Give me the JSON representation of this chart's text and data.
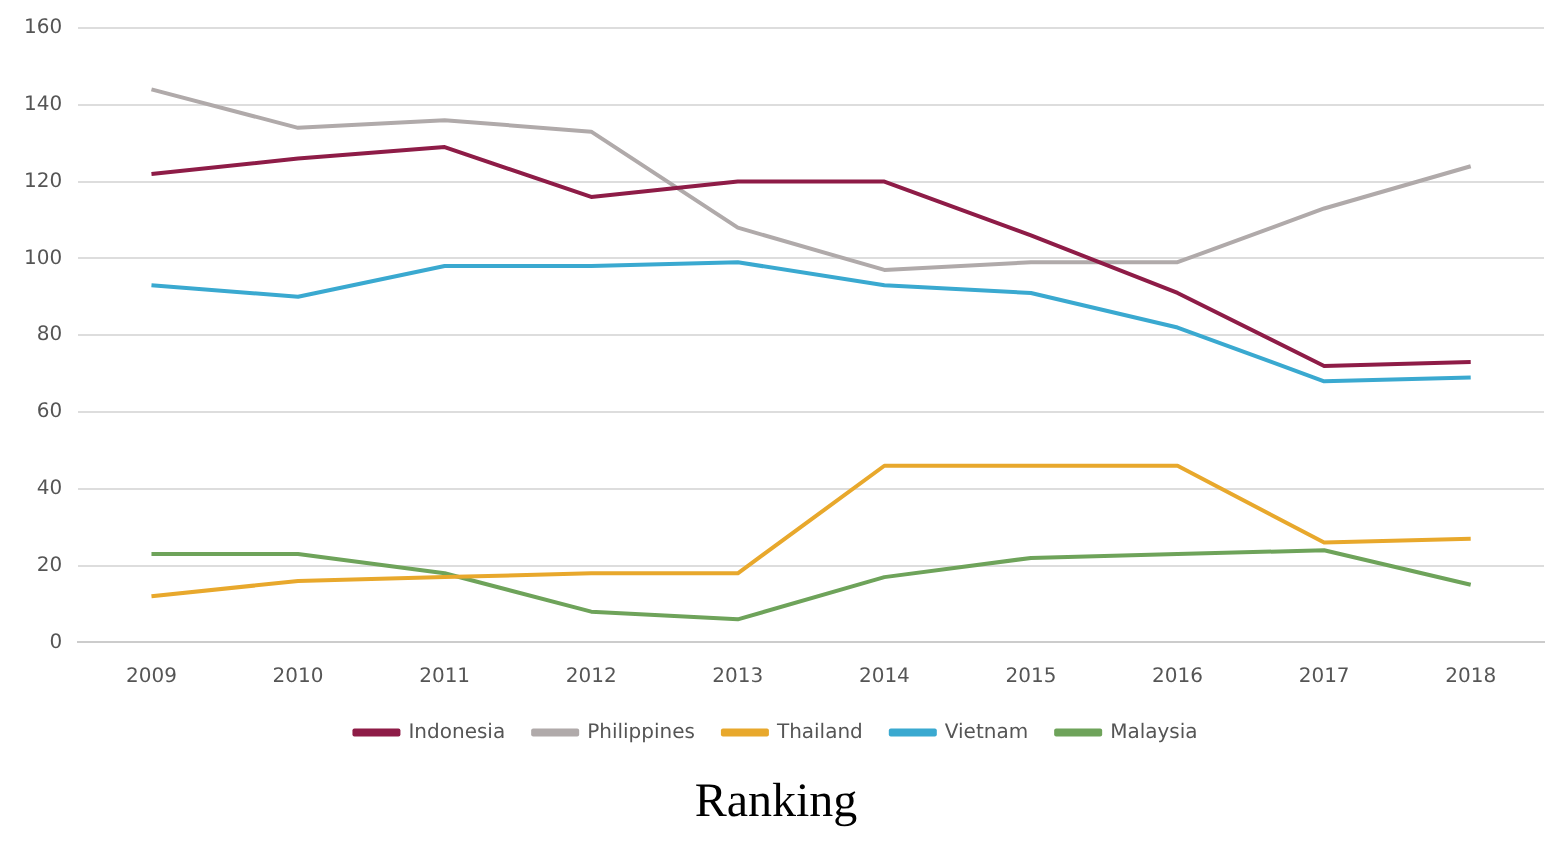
{
  "chart_data": {
    "type": "line",
    "title": "Ranking",
    "categories": [
      "2009",
      "2010",
      "2011",
      "2012",
      "2013",
      "2014",
      "2015",
      "2016",
      "2017",
      "2018"
    ],
    "series": [
      {
        "name": "Indonesia",
        "color": "#8e1c47",
        "values": [
          122,
          126,
          129,
          116,
          120,
          120,
          106,
          91,
          72,
          73
        ]
      },
      {
        "name": "Philippines",
        "color": "#b0aaaa",
        "values": [
          144,
          134,
          136,
          133,
          108,
          97,
          99,
          99,
          113,
          124
        ]
      },
      {
        "name": "Thailand",
        "color": "#e8a82c",
        "values": [
          12,
          16,
          17,
          18,
          18,
          46,
          46,
          46,
          26,
          27
        ]
      },
      {
        "name": "Vietnam",
        "color": "#3aa9d0",
        "values": [
          93,
          90,
          98,
          98,
          99,
          93,
          91,
          82,
          68,
          69
        ]
      },
      {
        "name": "Malaysia",
        "color": "#6ea35a",
        "values": [
          23,
          23,
          18,
          8,
          6,
          17,
          22,
          23,
          24,
          15
        ]
      }
    ],
    "ylim": [
      0,
      160
    ],
    "yticks": [
      0,
      20,
      40,
      60,
      80,
      100,
      120,
      140,
      160
    ],
    "grid": "y",
    "legend": "bottom",
    "marker": "none",
    "line_style": "solid"
  }
}
